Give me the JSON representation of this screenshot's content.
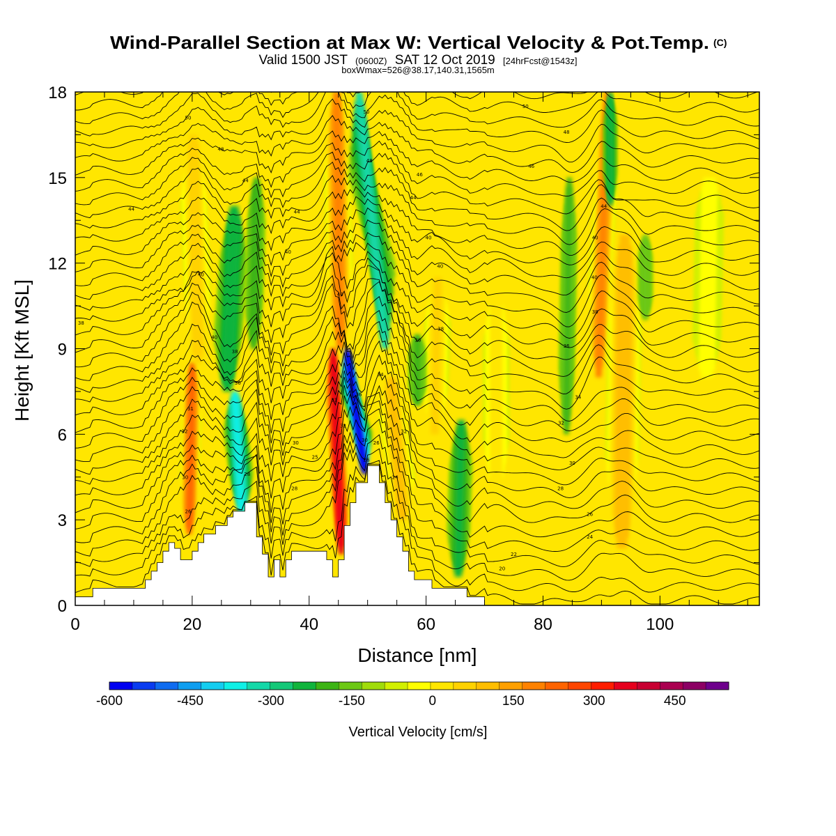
{
  "chart_data": {
    "type": "heatmap",
    "title": "Wind-Parallel Section at Max W: Vertical Velocity & Pot.Temp.",
    "title_mark": "(C)",
    "subtitle": {
      "prefix": "Valid 1500 JST",
      "utc": "(0600Z)",
      "date": "SAT 12 Oct 2019",
      "forecast": "[24hrFcst@1543z]"
    },
    "subtitle2": "boxWmax=526@38.17,140.31,1565m",
    "xlabel": "Distance [nm]",
    "ylabel": "Height [Kft MSL]",
    "xlim": [
      0,
      117
    ],
    "ylim": [
      0,
      18
    ],
    "x_ticks": [
      "0",
      "20",
      "40",
      "60",
      "80",
      "100"
    ],
    "x_tick_values": [
      0,
      20,
      40,
      60,
      80,
      100
    ],
    "y_ticks": [
      "0",
      "3",
      "6",
      "9",
      "12",
      "15",
      "18"
    ],
    "y_tick_values": [
      0,
      3,
      6,
      9,
      12,
      15,
      18
    ],
    "colorbar": {
      "title": "Vertical Velocity [cm/s]",
      "labels": [
        "-600",
        "-450",
        "-300",
        "-150",
        "0",
        "150",
        "300",
        "450"
      ],
      "min": -600,
      "max": 550,
      "step": 50,
      "colors": [
        "#0000f0",
        "#0a3cf0",
        "#0f6cf0",
        "#0f9ef0",
        "#14cdf0",
        "#0ff0e6",
        "#14d8a8",
        "#14c878",
        "#10b43c",
        "#3cb414",
        "#6cc814",
        "#a0dc0a",
        "#d2f000",
        "#ffff00",
        "#ffe600",
        "#ffd200",
        "#ffbe00",
        "#ffa000",
        "#ff8200",
        "#ff6400",
        "#ff4600",
        "#ff1e00",
        "#e6001e",
        "#c80032",
        "#aa0050",
        "#8c0064",
        "#6e008c"
      ]
    },
    "terrain": [
      [
        0,
        0.3
      ],
      [
        3,
        0.3
      ],
      [
        3,
        0.6
      ],
      [
        12,
        0.6
      ],
      [
        12,
        0.9
      ],
      [
        13,
        0.9
      ],
      [
        13,
        1.2
      ],
      [
        14,
        1.2
      ],
      [
        14,
        1.5
      ],
      [
        15,
        1.5
      ],
      [
        15,
        1.9
      ],
      [
        16,
        1.9
      ],
      [
        16,
        2.2
      ],
      [
        17,
        2.2
      ],
      [
        17,
        2.0
      ],
      [
        18,
        2.0
      ],
      [
        18,
        1.6
      ],
      [
        20,
        1.6
      ],
      [
        20,
        1.9
      ],
      [
        21,
        1.9
      ],
      [
        21,
        2.2
      ],
      [
        22,
        2.2
      ],
      [
        22,
        2.5
      ],
      [
        24,
        2.5
      ],
      [
        24,
        2.8
      ],
      [
        26,
        2.8
      ],
      [
        26,
        3.1
      ],
      [
        27,
        3.1
      ],
      [
        27,
        3.3
      ],
      [
        29,
        3.3
      ],
      [
        29,
        3.6
      ],
      [
        31,
        3.6
      ],
      [
        31,
        2.4
      ],
      [
        32,
        2.4
      ],
      [
        32,
        1.8
      ],
      [
        33,
        1.8
      ],
      [
        33,
        1.0
      ],
      [
        34,
        1.0
      ],
      [
        34,
        1.6
      ],
      [
        35,
        1.6
      ],
      [
        35,
        1.0
      ],
      [
        36,
        1.0
      ],
      [
        36,
        1.6
      ],
      [
        37,
        1.6
      ],
      [
        37,
        1.9
      ],
      [
        43,
        1.9
      ],
      [
        43,
        1.6
      ],
      [
        44,
        1.6
      ],
      [
        44,
        1.0
      ],
      [
        45,
        1.0
      ],
      [
        45,
        1.6
      ],
      [
        46,
        1.6
      ],
      [
        46,
        2.8
      ],
      [
        47,
        2.8
      ],
      [
        47,
        3.6
      ],
      [
        48,
        3.6
      ],
      [
        48,
        4.3
      ],
      [
        50,
        4.3
      ],
      [
        50,
        4.9
      ],
      [
        52,
        4.9
      ],
      [
        52,
        4.3
      ],
      [
        53,
        4.3
      ],
      [
        53,
        3.6
      ],
      [
        54,
        3.6
      ],
      [
        54,
        3.0
      ],
      [
        55,
        3.0
      ],
      [
        55,
        2.4
      ],
      [
        56,
        2.4
      ],
      [
        56,
        1.9
      ],
      [
        57,
        1.9
      ],
      [
        57,
        1.2
      ],
      [
        58,
        1.2
      ],
      [
        58,
        0.9
      ],
      [
        61,
        0.9
      ],
      [
        61,
        0.6
      ],
      [
        67,
        0.6
      ],
      [
        67,
        0.3
      ],
      [
        70,
        0.3
      ],
      [
        70,
        0
      ],
      [
        0,
        0
      ]
    ],
    "updrafts": [
      {
        "x": 19.5,
        "y0": 2.5,
        "y1": 8.5,
        "tilt": 0.5,
        "width": 1.3,
        "peak": 360
      },
      {
        "x": 21,
        "y0": 8.5,
        "y1": 16.5,
        "tilt": -0.8,
        "width": 2.0,
        "peak": 170
      },
      {
        "x": 45.5,
        "y0": 1.8,
        "y1": 9,
        "tilt": -1.4,
        "width": 1.3,
        "peak": 500
      },
      {
        "x": 45.3,
        "y0": 9,
        "y1": 18,
        "tilt": -0.6,
        "width": 1.8,
        "peak": 320
      },
      {
        "x": 56,
        "y0": 3,
        "y1": 8,
        "tilt": -2.0,
        "width": 2.0,
        "peak": 200
      },
      {
        "x": 61.5,
        "y0": 6,
        "y1": 11.5,
        "tilt": 0.5,
        "width": 2.0,
        "peak": 150
      },
      {
        "x": 72,
        "y0": 4,
        "y1": 11,
        "tilt": 0,
        "width": 2.2,
        "peak": 120
      },
      {
        "x": 89.5,
        "y0": 8,
        "y1": 18,
        "tilt": 1.5,
        "width": 1.5,
        "peak": 330
      },
      {
        "x": 93.5,
        "y0": 2,
        "y1": 13,
        "tilt": 0.5,
        "width": 2.6,
        "peak": 240
      },
      {
        "x": 108,
        "y0": 8,
        "y1": 15,
        "tilt": 0.5,
        "width": 3,
        "peak": 60
      }
    ],
    "downdrafts": [
      {
        "x": 28.5,
        "y0": 3.2,
        "y1": 7.5,
        "tilt": -1.2,
        "width": 1.7,
        "peak": -330
      },
      {
        "x": 26,
        "y0": 7.5,
        "y1": 14,
        "tilt": 1.2,
        "width": 2.2,
        "peak": -200
      },
      {
        "x": 30.5,
        "y0": 9,
        "y1": 15,
        "tilt": 0.5,
        "width": 1.5,
        "peak": -120
      },
      {
        "x": 49.5,
        "y0": 4.6,
        "y1": 9,
        "tilt": -3.0,
        "width": 1.2,
        "peak": -560
      },
      {
        "x": 53,
        "y0": 9,
        "y1": 18,
        "tilt": -4.5,
        "width": 1.7,
        "peak": -260
      },
      {
        "x": 65.5,
        "y0": 1,
        "y1": 6.5,
        "tilt": 0.5,
        "width": 1.8,
        "peak": -160
      },
      {
        "x": 58.5,
        "y0": 7,
        "y1": 9.5,
        "tilt": 0,
        "width": 1.5,
        "peak": -110
      },
      {
        "x": 84,
        "y0": 6,
        "y1": 15,
        "tilt": 0.5,
        "width": 1.3,
        "peak": -110
      },
      {
        "x": 91.5,
        "y0": 14,
        "y1": 18,
        "tilt": 0,
        "width": 1.0,
        "peak": -180
      },
      {
        "x": 97.5,
        "y0": 10,
        "y1": 13,
        "tilt": 0,
        "width": 1.2,
        "peak": -100
      }
    ],
    "isentropes": {
      "theta_start": 18,
      "theta_step": 1,
      "count": 38,
      "labels": [
        {
          "x": 19.3,
          "y": 3.3,
          "text": "26"
        },
        {
          "x": 18.8,
          "y": 4.5,
          "text": "30"
        },
        {
          "x": 18.7,
          "y": 6.1,
          "text": "32"
        },
        {
          "x": 19.7,
          "y": 6.9,
          "text": "31"
        },
        {
          "x": 21.5,
          "y": 11.6,
          "text": "40"
        },
        {
          "x": 23.8,
          "y": 9.4,
          "text": "40"
        },
        {
          "x": 27.3,
          "y": 8.9,
          "text": "38"
        },
        {
          "x": 27.8,
          "y": 7.8,
          "text": "36"
        },
        {
          "x": 29.4,
          "y": 4.6,
          "text": "28"
        },
        {
          "x": 37.7,
          "y": 5.7,
          "text": "30"
        },
        {
          "x": 37.5,
          "y": 4.1,
          "text": "28"
        },
        {
          "x": 41.0,
          "y": 5.2,
          "text": "25"
        },
        {
          "x": 44.3,
          "y": 7.2,
          "text": "31"
        },
        {
          "x": 45.8,
          "y": 6.3,
          "text": "32"
        },
        {
          "x": 49.5,
          "y": 5.8,
          "text": "30"
        },
        {
          "x": 49.8,
          "y": 5.1,
          "text": "26"
        },
        {
          "x": 51.5,
          "y": 5.7,
          "text": "26"
        },
        {
          "x": 48.5,
          "y": 7.4,
          "text": "36"
        },
        {
          "x": 52.2,
          "y": 8.1,
          "text": "34"
        },
        {
          "x": 54.7,
          "y": 4.5,
          "text": "24"
        },
        {
          "x": 56.2,
          "y": 6.1,
          "text": "32"
        },
        {
          "x": 58.6,
          "y": 9.3,
          "text": "36"
        },
        {
          "x": 62.5,
          "y": 9.7,
          "text": "38"
        },
        {
          "x": 62.4,
          "y": 11.9,
          "text": "40"
        },
        {
          "x": 60.4,
          "y": 12.9,
          "text": "40"
        },
        {
          "x": 57.8,
          "y": 14.3,
          "text": "44"
        },
        {
          "x": 58.9,
          "y": 15.1,
          "text": "46"
        },
        {
          "x": 50.3,
          "y": 15.6,
          "text": "48"
        },
        {
          "x": 49.8,
          "y": 17.3,
          "text": "50"
        },
        {
          "x": 45.3,
          "y": 10.9,
          "text": "40"
        },
        {
          "x": 36.4,
          "y": 12.4,
          "text": "40"
        },
        {
          "x": 37.9,
          "y": 13.8,
          "text": "44"
        },
        {
          "x": 29.1,
          "y": 14.9,
          "text": "44"
        },
        {
          "x": 24.9,
          "y": 16.0,
          "text": "48"
        },
        {
          "x": 19.3,
          "y": 17.1,
          "text": "50"
        },
        {
          "x": 9.6,
          "y": 13.9,
          "text": "44"
        },
        {
          "x": 1.0,
          "y": 9.9,
          "text": "38"
        },
        {
          "x": 77.0,
          "y": 17.5,
          "text": "50"
        },
        {
          "x": 84.0,
          "y": 16.6,
          "text": "48"
        },
        {
          "x": 78.0,
          "y": 15.4,
          "text": "46"
        },
        {
          "x": 90.4,
          "y": 14.0,
          "text": "44"
        },
        {
          "x": 88.9,
          "y": 12.9,
          "text": "40"
        },
        {
          "x": 88.8,
          "y": 11.5,
          "text": "40"
        },
        {
          "x": 88.9,
          "y": 10.3,
          "text": "38"
        },
        {
          "x": 84.0,
          "y": 9.1,
          "text": "36"
        },
        {
          "x": 86.0,
          "y": 7.3,
          "text": "34"
        },
        {
          "x": 83.1,
          "y": 6.4,
          "text": "32"
        },
        {
          "x": 85.0,
          "y": 5.0,
          "text": "30"
        },
        {
          "x": 83.0,
          "y": 4.1,
          "text": "28"
        },
        {
          "x": 88.0,
          "y": 3.2,
          "text": "26"
        },
        {
          "x": 88.0,
          "y": 2.4,
          "text": "24"
        },
        {
          "x": 75.0,
          "y": 1.8,
          "text": "22"
        },
        {
          "x": 73.0,
          "y": 1.3,
          "text": "20"
        }
      ]
    }
  }
}
